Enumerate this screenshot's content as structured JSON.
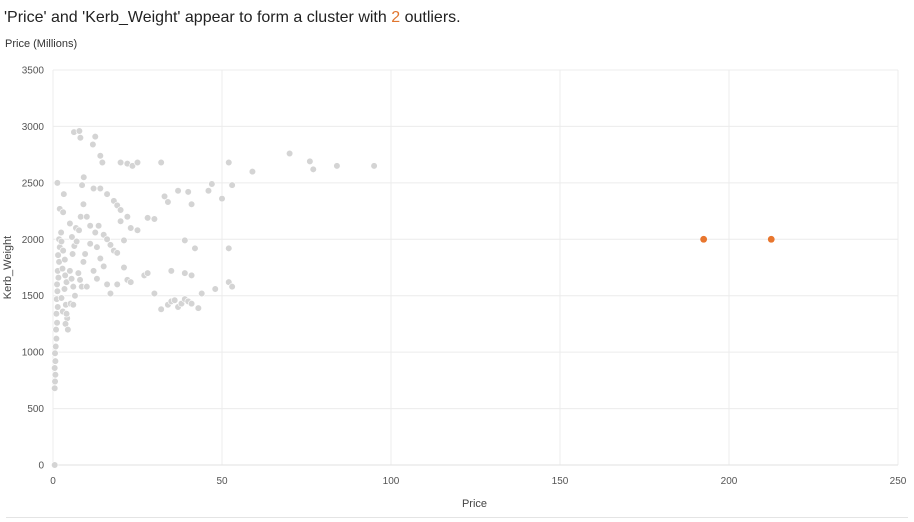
{
  "header": {
    "headline_prefix": "'Price' and 'Kerb_Weight' appear to form a cluster with ",
    "outlier_count": "2",
    "headline_suffix": " outliers.",
    "subtitle": "Price (Millions)"
  },
  "colors": {
    "cluster": "#d4d4d4",
    "outlier": "#e8762e",
    "grid": "#ececec",
    "count_text": "#e0762f"
  },
  "chart_data": {
    "type": "scatter",
    "xlabel": "Price",
    "ylabel": "Kerb_Weight",
    "xlim": [
      0,
      250
    ],
    "ylim": [
      0,
      3500
    ],
    "x_ticks": [
      0,
      50,
      100,
      150,
      200,
      250
    ],
    "y_ticks": [
      0,
      500,
      1000,
      1500,
      2000,
      2500,
      3000,
      3500
    ],
    "grid": true,
    "series": [
      {
        "role": "cluster",
        "points": [
          [
            0.5,
            0
          ],
          [
            0.5,
            680
          ],
          [
            0.6,
            740
          ],
          [
            0.7,
            800
          ],
          [
            0.5,
            860
          ],
          [
            0.7,
            920
          ],
          [
            0.6,
            990
          ],
          [
            0.8,
            1050
          ],
          [
            1,
            1120
          ],
          [
            0.9,
            1200
          ],
          [
            1.2,
            1260
          ],
          [
            1,
            1340
          ],
          [
            1.4,
            1400
          ],
          [
            1.1,
            1470
          ],
          [
            1.3,
            1540
          ],
          [
            1.2,
            1600
          ],
          [
            1.6,
            1660
          ],
          [
            1.4,
            1720
          ],
          [
            1.8,
            1800
          ],
          [
            1.5,
            1860
          ],
          [
            2,
            1930
          ],
          [
            1.8,
            2000
          ],
          [
            2.4,
            2060
          ],
          [
            1.3,
            2500
          ],
          [
            2,
            2270
          ],
          [
            3,
            2240
          ],
          [
            3.2,
            2400
          ],
          [
            2.5,
            1980
          ],
          [
            3,
            1900
          ],
          [
            3.5,
            1820
          ],
          [
            2.8,
            1740
          ],
          [
            3.6,
            1680
          ],
          [
            4,
            1620
          ],
          [
            3.4,
            1560
          ],
          [
            2.6,
            1480
          ],
          [
            3.8,
            1420
          ],
          [
            2.9,
            1360
          ],
          [
            4.2,
            1300
          ],
          [
            3.7,
            1250
          ],
          [
            4.4,
            1200
          ],
          [
            5,
            1720
          ],
          [
            5.5,
            1650
          ],
          [
            6,
            1580
          ],
          [
            6.5,
            1500
          ],
          [
            5.2,
            1430
          ],
          [
            5.8,
            1870
          ],
          [
            6.3,
            1940
          ],
          [
            5.6,
            2020
          ],
          [
            6.8,
            2100
          ],
          [
            7.5,
            1700
          ],
          [
            8,
            1640
          ],
          [
            8.5,
            1580
          ],
          [
            9,
            1800
          ],
          [
            9.5,
            1870
          ],
          [
            7,
            1980
          ],
          [
            7.7,
            2080
          ],
          [
            8.2,
            2200
          ],
          [
            9,
            2310
          ],
          [
            8.6,
            2480
          ],
          [
            9.1,
            2550
          ],
          [
            6.2,
            2950
          ],
          [
            7.8,
            2960
          ],
          [
            8.1,
            2900
          ],
          [
            12.5,
            2910
          ],
          [
            11.8,
            2840
          ],
          [
            14,
            2740
          ],
          [
            14.6,
            2680
          ],
          [
            20,
            2680
          ],
          [
            22,
            2670
          ],
          [
            23.5,
            2650
          ],
          [
            25,
            2680
          ],
          [
            32,
            2680
          ],
          [
            12,
            2450
          ],
          [
            14,
            2450
          ],
          [
            16,
            2400
          ],
          [
            18,
            2340
          ],
          [
            19,
            2300
          ],
          [
            20,
            2260
          ],
          [
            22,
            2200
          ],
          [
            20,
            2160
          ],
          [
            23,
            2100
          ],
          [
            25,
            2080
          ],
          [
            28,
            2190
          ],
          [
            30,
            2180
          ],
          [
            10,
            2200
          ],
          [
            11,
            2120
          ],
          [
            12.5,
            2060
          ],
          [
            13.5,
            2120
          ],
          [
            15,
            2040
          ],
          [
            16,
            2000
          ],
          [
            17,
            1950
          ],
          [
            18,
            1900
          ],
          [
            19,
            1880
          ],
          [
            21,
            1990
          ],
          [
            14,
            1830
          ],
          [
            15,
            1760
          ],
          [
            12,
            1720
          ],
          [
            13,
            1650
          ],
          [
            16,
            1600
          ],
          [
            17,
            1520
          ],
          [
            19,
            1600
          ],
          [
            21,
            1750
          ],
          [
            22,
            1640
          ],
          [
            23,
            1620
          ],
          [
            27,
            1680
          ],
          [
            28,
            1700
          ],
          [
            30,
            1520
          ],
          [
            32,
            1380
          ],
          [
            34,
            1420
          ],
          [
            35,
            1450
          ],
          [
            36,
            1460
          ],
          [
            37,
            1400
          ],
          [
            38,
            1430
          ],
          [
            39,
            1470
          ],
          [
            40,
            1450
          ],
          [
            41,
            1430
          ],
          [
            43,
            1390
          ],
          [
            44,
            1520
          ],
          [
            48,
            1560
          ],
          [
            52,
            1620
          ],
          [
            53,
            1580
          ],
          [
            35,
            1720
          ],
          [
            39,
            1700
          ],
          [
            41,
            1680
          ],
          [
            39,
            1990
          ],
          [
            42,
            1920
          ],
          [
            52,
            1920
          ],
          [
            33,
            2380
          ],
          [
            34,
            2330
          ],
          [
            37,
            2430
          ],
          [
            40,
            2420
          ],
          [
            41,
            2310
          ],
          [
            46,
            2430
          ],
          [
            47,
            2490
          ],
          [
            50,
            2360
          ],
          [
            53,
            2480
          ],
          [
            52,
            2680
          ],
          [
            59,
            2600
          ],
          [
            70,
            2760
          ],
          [
            76,
            2690
          ],
          [
            77,
            2620
          ],
          [
            84,
            2650
          ],
          [
            95,
            2650
          ],
          [
            11,
            1960
          ],
          [
            13,
            1930
          ],
          [
            10,
            1580
          ],
          [
            6,
            1420
          ],
          [
            4,
            1340
          ],
          [
            2.5,
            1480
          ],
          [
            5,
            2140
          ]
        ]
      },
      {
        "role": "outliers",
        "points": [
          [
            192.5,
            2000
          ],
          [
            212.5,
            2000
          ]
        ]
      }
    ]
  }
}
